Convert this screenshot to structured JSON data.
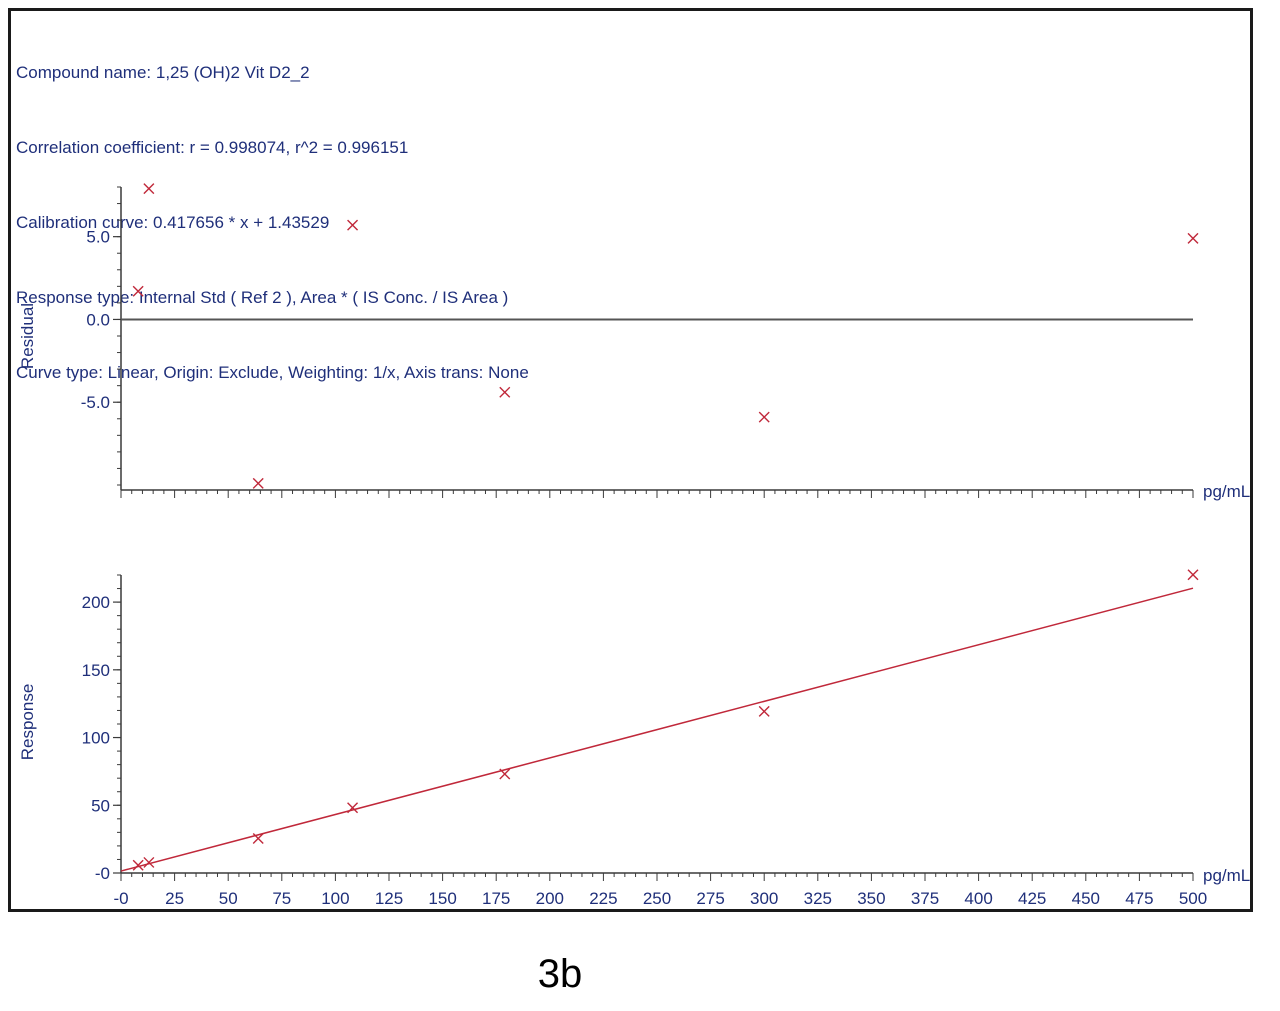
{
  "header": {
    "compound": "Compound name: 1,25 (OH)2 Vit D2_2",
    "correlation": "Correlation coefficient: r = 0.998074, r^2 = 0.996151",
    "calibration": "Calibration curve: 0.417656 * x + 1.43529",
    "response_type": "Response type: Internal Std ( Ref 2 ), Area * ( IS Conc. / IS Area )",
    "curve_type": "Curve type: Linear, Origin: Exclude, Weighting: 1/x, Axis trans: None"
  },
  "caption": "3b",
  "colors": {
    "marker": "#c0283a",
    "fit_line": "#c0283a",
    "axis": "#3a3a3a",
    "text": "#1f2f7a"
  },
  "chart_data": [
    {
      "type": "scatter",
      "name": "residual-plot",
      "ylabel": "Residual",
      "xunit": "pg/mL",
      "xlim": [
        0,
        500
      ],
      "ylim": [
        -10,
        8
      ],
      "yticks": [
        5.0,
        0.0,
        -5.0
      ],
      "ytick_labels": [
        "5.0",
        "0.0",
        "-5.0"
      ],
      "zero_line": true,
      "points": {
        "x": [
          8,
          13,
          64,
          108,
          179,
          300,
          500
        ],
        "y": [
          1.7,
          7.9,
          -9.9,
          5.7,
          -4.4,
          -5.9,
          4.9
        ]
      }
    },
    {
      "type": "scatter",
      "name": "calibration-plot",
      "ylabel": "Response",
      "xunit": "pg/mL",
      "xlim": [
        0,
        500
      ],
      "ylim": [
        0,
        220
      ],
      "yticks": [
        200,
        150,
        100,
        50,
        0
      ],
      "ytick_labels": [
        "200",
        "150",
        "100",
        "50",
        "-0"
      ],
      "xticks": [
        0,
        25,
        50,
        75,
        100,
        125,
        150,
        175,
        200,
        225,
        250,
        275,
        300,
        325,
        350,
        375,
        400,
        425,
        450,
        475,
        500
      ],
      "xtick_labels": [
        "-0",
        "25",
        "50",
        "75",
        "100",
        "125",
        "150",
        "175",
        "200",
        "225",
        "250",
        "275",
        "300",
        "325",
        "350",
        "375",
        "400",
        "425",
        "450",
        "475",
        "500"
      ],
      "fit": {
        "slope": 0.417656,
        "intercept": 1.43529
      },
      "points": {
        "x": [
          8,
          13,
          64,
          108,
          179,
          300,
          500
        ],
        "y": [
          5.7,
          7.8,
          25.5,
          48.2,
          73.1,
          119.3,
          220.2
        ]
      }
    }
  ]
}
